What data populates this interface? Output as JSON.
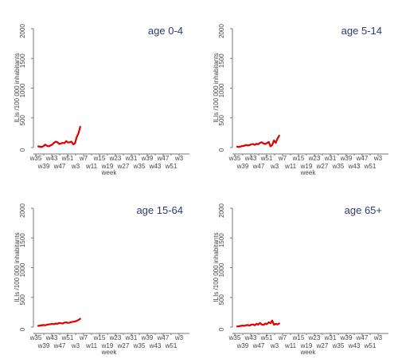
{
  "chart_data": [
    {
      "type": "line",
      "title": "age 0-4",
      "xlabel": "week",
      "ylabel": "ILIs /100 000 inhabitants",
      "ylim": [
        0,
        2000
      ],
      "yticks": [
        "0",
        "500",
        "1000",
        "1500",
        "2000"
      ],
      "xtick_upper": [
        "w35",
        "w43",
        "w51",
        "w7",
        "w15",
        "w23",
        "w31",
        "w39",
        "w47",
        "w3"
      ],
      "xtick_lower": [
        "w39",
        "w47",
        "w3",
        "w11",
        "w19",
        "w27",
        "w35",
        "w43",
        "w51"
      ],
      "color": "#e00000",
      "grid": false,
      "values": [
        20,
        15,
        10,
        25,
        50,
        30,
        20,
        35,
        50,
        80,
        100,
        90,
        60,
        70,
        80,
        75,
        110,
        85,
        90,
        100,
        55,
        70,
        180,
        240,
        350
      ]
    },
    {
      "type": "line",
      "title": "age 5-14",
      "xlabel": "week",
      "ylabel": "ILIs /100 000 inhabitants",
      "ylim": [
        0,
        2000
      ],
      "yticks": [
        "0",
        "500",
        "1000",
        "1500",
        "2000"
      ],
      "xtick_upper": [
        "w35",
        "w43",
        "w51",
        "w7",
        "w15",
        "w23",
        "w31",
        "w39",
        "w47",
        "w3"
      ],
      "xtick_lower": [
        "w39",
        "w47",
        "w3",
        "w11",
        "w19",
        "w27",
        "w35",
        "w43",
        "w51"
      ],
      "color": "#e00000",
      "grid": false,
      "values": [
        15,
        10,
        20,
        25,
        30,
        45,
        35,
        40,
        55,
        60,
        45,
        65,
        55,
        80,
        90,
        70,
        60,
        75,
        95,
        20,
        45,
        120,
        80,
        150,
        200
      ]
    },
    {
      "type": "line",
      "title": "age 15-64",
      "xlabel": "week",
      "ylabel": "ILIs /100 000 inhabitants",
      "ylim": [
        0,
        2000
      ],
      "yticks": [
        "0",
        "500",
        "1000",
        "1500",
        "2000"
      ],
      "xtick_upper": [
        "w35",
        "w43",
        "w51",
        "w7",
        "w15",
        "w23",
        "w31",
        "w39",
        "w47",
        "w3"
      ],
      "xtick_lower": [
        "w39",
        "w47",
        "w3",
        "w11",
        "w19",
        "w27",
        "w35",
        "w43",
        "w51"
      ],
      "color": "#e00000",
      "grid": false,
      "values": [
        20,
        25,
        30,
        35,
        30,
        40,
        45,
        50,
        55,
        50,
        60,
        55,
        70,
        65,
        60,
        75,
        80,
        70,
        75,
        85,
        90,
        95,
        105,
        120,
        140
      ]
    },
    {
      "type": "line",
      "title": "age 65+",
      "xlabel": "week",
      "ylabel": "ILIs /100 000 inhabitants",
      "ylim": [
        0,
        2000
      ],
      "yticks": [
        "0",
        "500",
        "1000",
        "1500",
        "2000"
      ],
      "xtick_upper": [
        "w35",
        "w43",
        "w51",
        "w7",
        "w15",
        "w23",
        "w31",
        "w39",
        "w47",
        "w3"
      ],
      "xtick_lower": [
        "w39",
        "w47",
        "w3",
        "w11",
        "w19",
        "w27",
        "w35",
        "w43",
        "w51"
      ],
      "color": "#e00000",
      "grid": false,
      "values": [
        10,
        15,
        20,
        25,
        20,
        30,
        35,
        25,
        40,
        45,
        30,
        55,
        40,
        70,
        45,
        35,
        60,
        50,
        80,
        65,
        110,
        40,
        55,
        45,
        60
      ]
    }
  ]
}
